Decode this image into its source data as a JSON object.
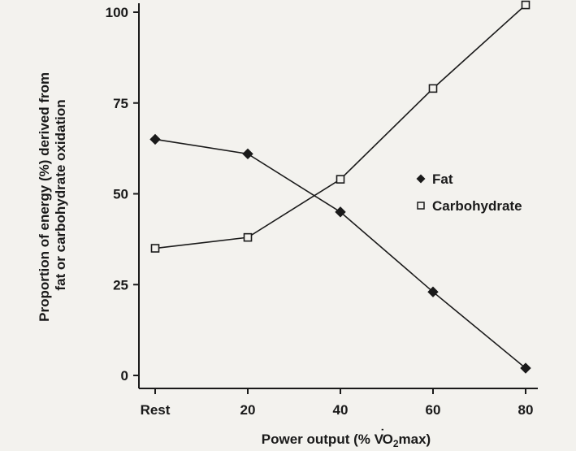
{
  "chart_data": {
    "type": "line",
    "categories": [
      "Rest",
      "20",
      "40",
      "60",
      "80"
    ],
    "x_values": [
      0,
      20,
      40,
      60,
      80
    ],
    "series": [
      {
        "name": "Fat",
        "marker": "filled-diamond",
        "values": [
          65,
          61,
          45,
          23,
          2
        ]
      },
      {
        "name": "Carbohydrate",
        "marker": "open-square",
        "values": [
          35,
          38,
          54,
          79,
          102
        ]
      }
    ],
    "ylim": [
      0,
      100
    ],
    "yticks": [
      0,
      25,
      50,
      75,
      100
    ],
    "yticklabels": [
      "0",
      "25",
      "50",
      "75",
      "100"
    ],
    "ylabel_lines": [
      "Proportion of energy (%) derived from",
      "fat or carbohydrate oxidation"
    ],
    "xlabel": {
      "before": "Power output (% V",
      "dot": "˙",
      "subscript": "O",
      "sub": "2",
      "after": "max)"
    },
    "legend_position": "right",
    "grid": false,
    "colors": {
      "line": "#1a1a1a",
      "background": "#f3f2ee"
    }
  }
}
